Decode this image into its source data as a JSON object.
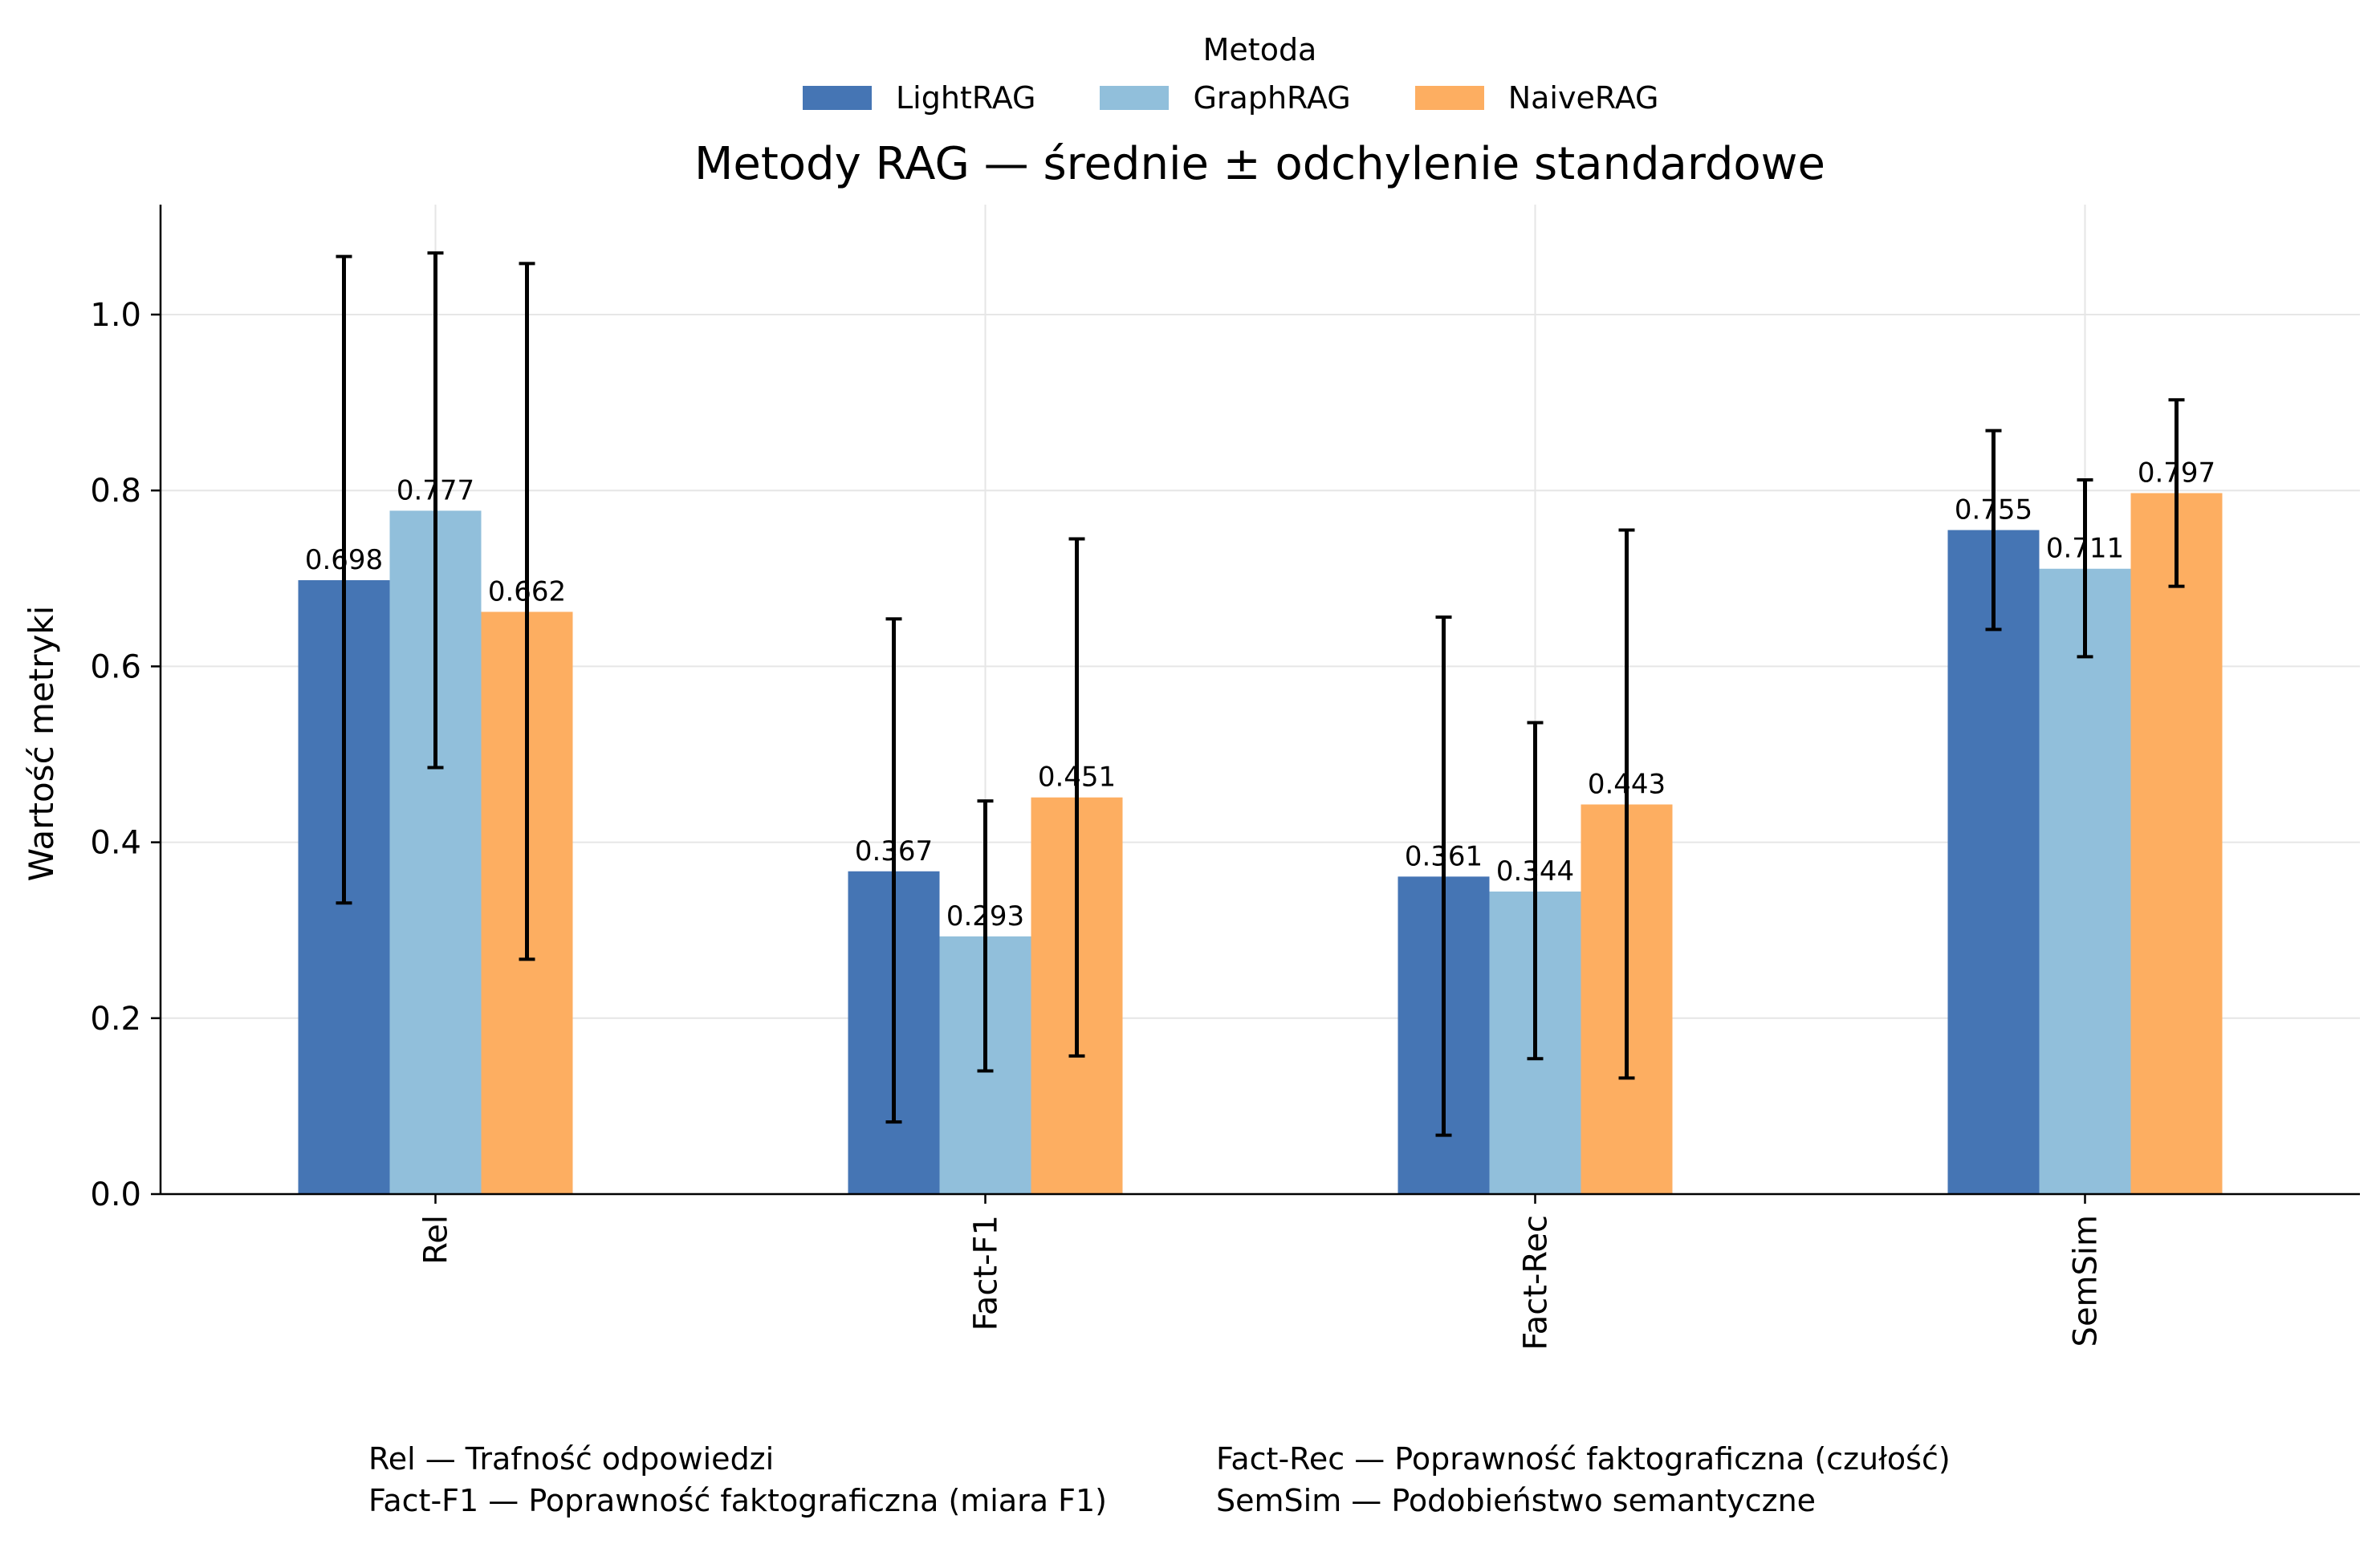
{
  "chart_data": {
    "type": "bar",
    "title": "Metody RAG — średnie ± odchylenie standardowe",
    "legend_title": "Metoda",
    "legend_position": "top-center",
    "xlabel": "",
    "ylabel": "Wartość metryki",
    "ylim": [
      0,
      1.12
    ],
    "yticks": [
      "0.0",
      "0.2",
      "0.4",
      "0.6",
      "0.8",
      "1.0"
    ],
    "grid": true,
    "categories": [
      "Rel",
      "Fact-F1",
      "Fact-Rec",
      "SemSim"
    ],
    "series": [
      {
        "name": "LightRAG",
        "color": "#4575b4",
        "values": [
          0.698,
          0.367,
          0.361,
          0.755
        ],
        "labels": [
          "0.698",
          "0.367",
          "0.361",
          "0.755"
        ],
        "err_low": [
          0.331,
          0.082,
          0.067,
          0.642
        ],
        "err_high": [
          1.066,
          0.654,
          0.656,
          0.868
        ]
      },
      {
        "name": "GraphRAG",
        "color": "#91bfdb",
        "values": [
          0.777,
          0.293,
          0.344,
          0.711
        ],
        "labels": [
          "0.777",
          "0.293",
          "0.344",
          "0.711"
        ],
        "err_low": [
          0.485,
          0.14,
          0.154,
          0.611
        ],
        "err_high": [
          1.07,
          0.447,
          0.536,
          0.812
        ]
      },
      {
        "name": "NaiveRAG",
        "color": "#fdae61",
        "values": [
          0.662,
          0.451,
          0.443,
          0.797
        ],
        "labels": [
          "0.662",
          "0.451",
          "0.443",
          "0.797"
        ],
        "err_low": [
          0.267,
          0.157,
          0.132,
          0.691
        ],
        "err_high": [
          1.058,
          0.745,
          0.755,
          0.903
        ]
      }
    ]
  },
  "footnotes": [
    "Rel — Trafność odpowiedzi",
    "Fact-Rec — Poprawność faktograficzna (czułość)",
    "Fact-F1 — Poprawność faktograficzna (miara F1)",
    "SemSim — Podobieństwo semantyczne"
  ]
}
